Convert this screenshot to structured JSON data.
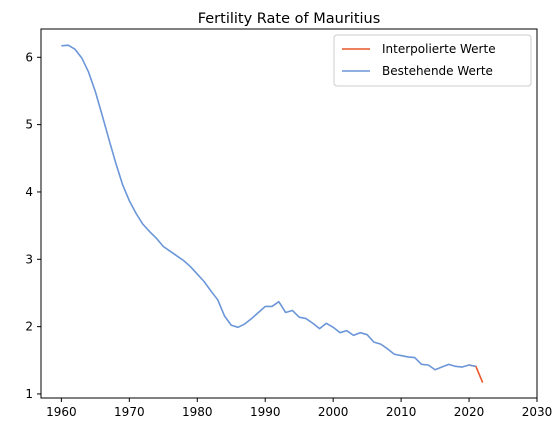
{
  "chart_data": {
    "type": "line",
    "title": "Fertility Rate of Mauritius",
    "xlabel": "",
    "ylabel": "",
    "xlim": [
      1957,
      2030
    ],
    "ylim": [
      0.94,
      6.42
    ],
    "xticks": [
      1960,
      1970,
      1980,
      1990,
      2000,
      2010,
      2020,
      2030
    ],
    "yticks": [
      1,
      2,
      3,
      4,
      5,
      6
    ],
    "grid": false,
    "legend_position": "top-right",
    "series": [
      {
        "name": "Interpolierte Werte",
        "color": "#e8562a",
        "x": [
          2020,
          2021,
          2022
        ],
        "y": [
          1.43,
          1.41,
          1.17
        ]
      },
      {
        "name": "Bestehende Werte",
        "color": "#6b96d8",
        "x": [
          1960,
          1961,
          1962,
          1963,
          1964,
          1965,
          1966,
          1967,
          1968,
          1969,
          1970,
          1971,
          1972,
          1973,
          1974,
          1975,
          1976,
          1977,
          1978,
          1979,
          1980,
          1981,
          1982,
          1983,
          1984,
          1985,
          1986,
          1987,
          1988,
          1989,
          1990,
          1991,
          1992,
          1993,
          1994,
          1995,
          1996,
          1997,
          1998,
          1999,
          2000,
          2001,
          2002,
          2003,
          2004,
          2005,
          2006,
          2007,
          2008,
          2009,
          2010,
          2011,
          2012,
          2013,
          2014,
          2015,
          2016,
          2017,
          2018,
          2019,
          2020,
          2021
        ],
        "y": [
          6.17,
          6.18,
          6.12,
          5.99,
          5.78,
          5.49,
          5.14,
          4.78,
          4.43,
          4.11,
          3.87,
          3.68,
          3.52,
          3.41,
          3.31,
          3.19,
          3.12,
          3.05,
          2.98,
          2.89,
          2.78,
          2.67,
          2.53,
          2.4,
          2.16,
          2.02,
          1.99,
          2.04,
          2.12,
          2.21,
          2.3,
          2.3,
          2.37,
          2.21,
          2.24,
          2.14,
          2.12,
          2.05,
          1.97,
          2.05,
          1.99,
          1.91,
          1.94,
          1.87,
          1.91,
          1.88,
          1.77,
          1.74,
          1.67,
          1.59,
          1.57,
          1.55,
          1.54,
          1.44,
          1.43,
          1.36,
          1.4,
          1.44,
          1.41,
          1.4,
          1.43,
          1.41
        ]
      }
    ]
  }
}
